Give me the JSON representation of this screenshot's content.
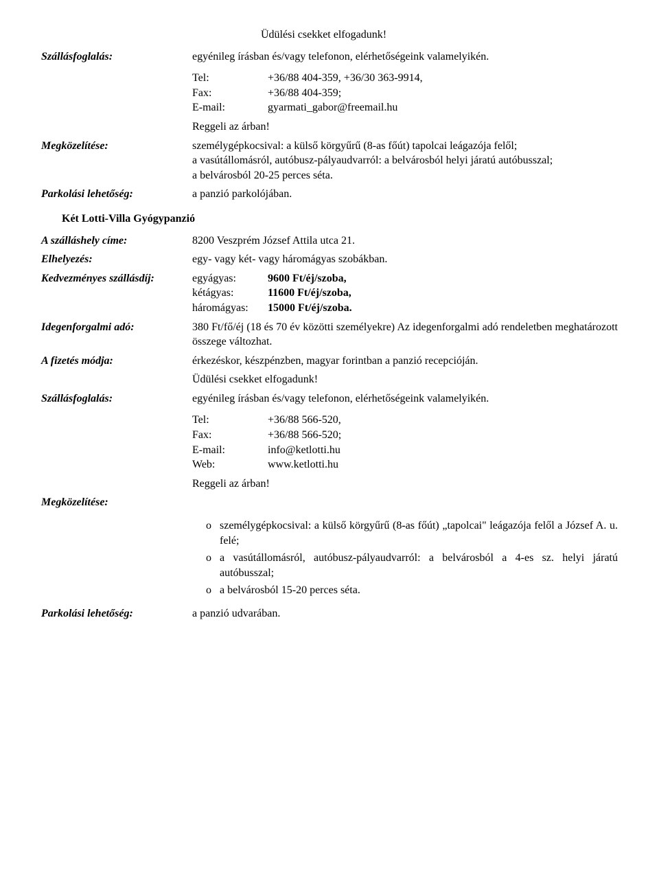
{
  "top": {
    "voucher": "Üdülési csekket elfogadunk!",
    "booking_label": "Szállásfoglalás:",
    "booking_value": "egyénileg írásban és/vagy telefonon, elérhetőségeink valamelyikén.",
    "contacts": {
      "tel_key": "Tel:",
      "tel_val": "+36/88 404-359, +36/30 363-9914,",
      "fax_key": "Fax:",
      "fax_val": "+36/88 404-359;",
      "email_key": "E-mail:",
      "email_val": "gyarmati_gabor@freemail.hu"
    },
    "breakfast": "Reggeli az árban!",
    "approach_label": "Megközelítése:",
    "approach_value": "személygépkocsival: a külső körgyűrű (8-as főút) tapolcai leágazója felől;\na vasútállomásról, autóbusz-pályaudvarról: a belvárosból helyi járatú autóbusszal;\na belvárosból 20-25 perces séta.",
    "parking_label": "Parkolási lehetőség:",
    "parking_value": "a panzió parkolójában."
  },
  "hotel2": {
    "title": "Két Lotti-Villa Gyógypanzió",
    "address_label": "A szálláshely címe:",
    "address_value": "8200 Veszprém József Attila utca 21.",
    "accom_label": "Elhelyezés:",
    "accom_value": "egy- vagy két- vagy háromágyas szobákban.",
    "rates_label": "Kedvezményes szállásdíj:",
    "rates": {
      "single_key": "egyágyas:",
      "single_val": "9600 Ft/éj/szoba,",
      "double_key": "kétágyas:",
      "double_val": "11600 Ft/éj/szoba,",
      "triple_key": "háromágyas:",
      "triple_val": "15000 Ft/éj/szoba."
    },
    "tax_label": "Idegenforgalmi adó:",
    "tax_value": "380 Ft/fő/éj (18 és 70 év közötti személyekre) Az idegenforgalmi adó rendeletben meghatározott összege változhat.",
    "payment_label": "A fizetés módja:",
    "payment_value": "érkezéskor, készpénzben, magyar forintban a panzió recep­cióján.",
    "voucher": "Üdülési csekket elfogadunk!",
    "booking_label": "Szállásfoglalás:",
    "booking_value": "egyénileg írásban és/vagy telefonon, elérhetőségeink valamelyikén.",
    "contacts": {
      "tel_key": "Tel:",
      "tel_val": "+36/88 566-520,",
      "fax_key": "Fax:",
      "fax_val": "+36/88 566-520;",
      "email_key": "E-mail:",
      "email_val": "info@ketlotti.hu",
      "web_key": "Web:",
      "web_val": "www.ketlotti.hu"
    },
    "breakfast": "Reggeli az árban!",
    "approach_label": "Megközelítése:",
    "approach_items": [
      "személygépkocsival: a külső körgyűrű (8-as főút) „tapolcai\" leágazója felől a József A. u. felé;",
      "a vasútállomásról, autóbusz-pályaudvarról: a belvárosból a 4-es sz. helyi járatú autóbusszal;",
      "a belvárosból 15-20 perces séta."
    ],
    "parking_label": "Parkolási lehetőség:",
    "parking_value": "a panzió udvarában."
  }
}
